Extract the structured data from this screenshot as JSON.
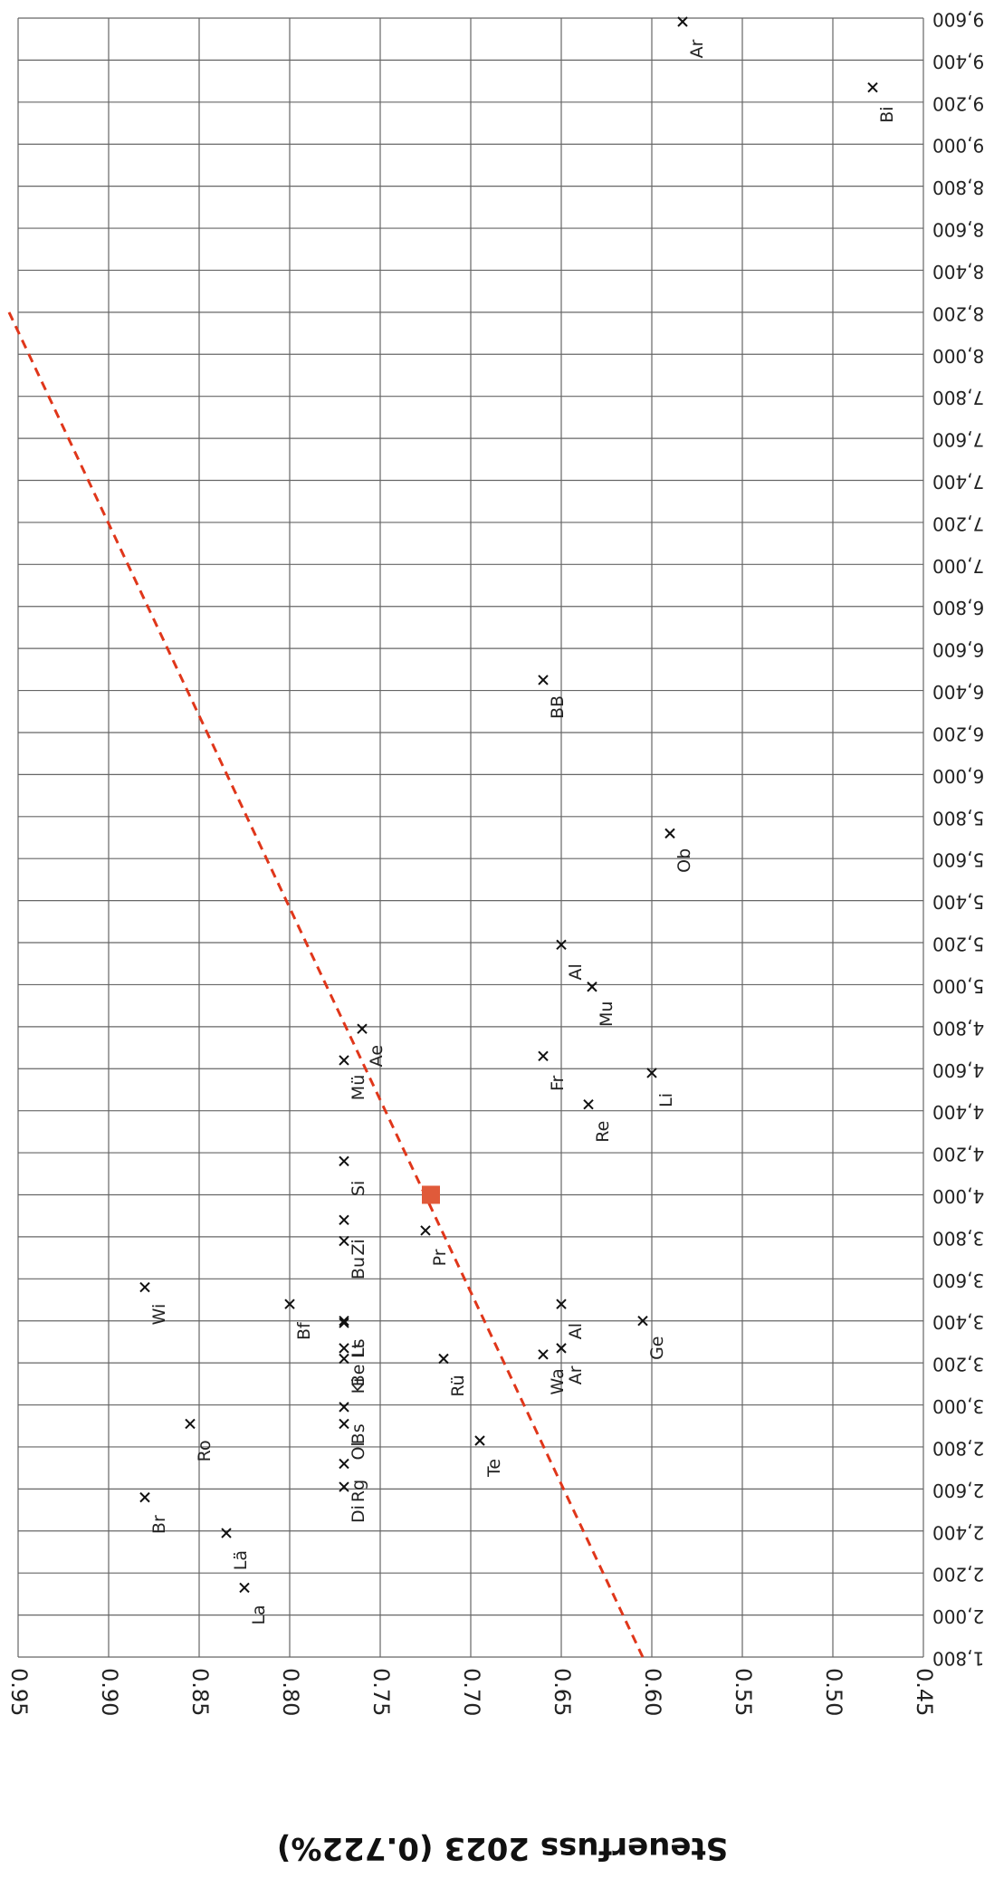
{
  "chart_data": {
    "type": "scatter",
    "orientation": "rotated-180",
    "ylabel": "Steuerfuss 2023 (0.722%)",
    "xlabel": "",
    "ylim": [
      0.45,
      0.95
    ],
    "xlim": [
      1800,
      9600
    ],
    "grid": true,
    "y_ticks": [
      "0.95",
      "0.90",
      "0.85",
      "0.80",
      "0.75",
      "0.70",
      "0.65",
      "0.60",
      "0.55",
      "0.50",
      "0.45"
    ],
    "x_ticks": [
      "1,800",
      "2,000",
      "2,200",
      "2,400",
      "2,600",
      "2,800",
      "3,000",
      "3,200",
      "3,400",
      "3,600",
      "3,800",
      "4,000",
      "4,200",
      "4,400",
      "4,600",
      "4,800",
      "5,000",
      "5,200",
      "5,400",
      "5,600",
      "5,800",
      "6,000",
      "6,200",
      "6,400",
      "6,600",
      "6,800",
      "7,000",
      "7,200",
      "7,400",
      "7,600",
      "7,800",
      "8,000",
      "8,200",
      "8,400",
      "8,600",
      "8,800",
      "9,000",
      "9,200",
      "9,400",
      "9,600"
    ],
    "points": [
      {
        "label": "La",
        "x": 2130,
        "y": 0.825
      },
      {
        "label": "Lä",
        "x": 2390,
        "y": 0.835
      },
      {
        "label": "Br",
        "x": 2560,
        "y": 0.88
      },
      {
        "label": "Ro",
        "x": 2910,
        "y": 0.855
      },
      {
        "label": "Di",
        "x": 2610,
        "y": 0.77
      },
      {
        "label": "Rg",
        "x": 2720,
        "y": 0.77
      },
      {
        "label": "Ol",
        "x": 2910,
        "y": 0.77
      },
      {
        "label": "Bs",
        "x": 2990,
        "y": 0.77
      },
      {
        "label": "Ki",
        "x": 3220,
        "y": 0.77
      },
      {
        "label": "Be",
        "x": 3270,
        "y": 0.77
      },
      {
        "label": "Lt",
        "x": 3390,
        "y": 0.77
      },
      {
        "label": "Ls",
        "x": 3400,
        "y": 0.77
      },
      {
        "label": "Bf",
        "x": 3480,
        "y": 0.8
      },
      {
        "label": "Wi",
        "x": 3560,
        "y": 0.88
      },
      {
        "label": "Bu",
        "x": 3780,
        "y": 0.77
      },
      {
        "label": "Zi",
        "x": 3880,
        "y": 0.77
      },
      {
        "label": "Si",
        "x": 4160,
        "y": 0.77
      },
      {
        "label": "Mü",
        "x": 4640,
        "y": 0.77
      },
      {
        "label": "Ae",
        "x": 4790,
        "y": 0.76
      },
      {
        "label": "Pr",
        "x": 3830,
        "y": 0.725
      },
      {
        "label": "Rü",
        "x": 3220,
        "y": 0.715
      },
      {
        "label": "Te",
        "x": 2830,
        "y": 0.695
      },
      {
        "label": "Wa",
        "x": 3240,
        "y": 0.66
      },
      {
        "label": "Ar",
        "x": 3270,
        "y": 0.65
      },
      {
        "label": "Al",
        "x": 3480,
        "y": 0.65
      },
      {
        "label": "Ge",
        "x": 3400,
        "y": 0.605
      },
      {
        "label": "Fr",
        "x": 4660,
        "y": 0.66
      },
      {
        "label": "Re",
        "x": 4430,
        "y": 0.635
      },
      {
        "label": "Li",
        "x": 4580,
        "y": 0.6
      },
      {
        "label": "Mu",
        "x": 4990,
        "y": 0.633
      },
      {
        "label": "Al",
        "x": 5190,
        "y": 0.65
      },
      {
        "label": "Ob",
        "x": 5720,
        "y": 0.59
      },
      {
        "label": "BB",
        "x": 6450,
        "y": 0.66
      },
      {
        "label": "Bi",
        "x": 9270,
        "y": 0.478
      },
      {
        "label": "Ar",
        "x": 9760,
        "y": 0.583
      }
    ],
    "highlight": {
      "x": 4000,
      "y": 0.722
    },
    "trendline": {
      "x1": 1800,
      "y1": 0.605,
      "x2": 8200,
      "y2": 0.955
    }
  },
  "colors": {
    "trend": "#e0361a",
    "highlight": "#e05a3a",
    "grid": "#666666"
  }
}
